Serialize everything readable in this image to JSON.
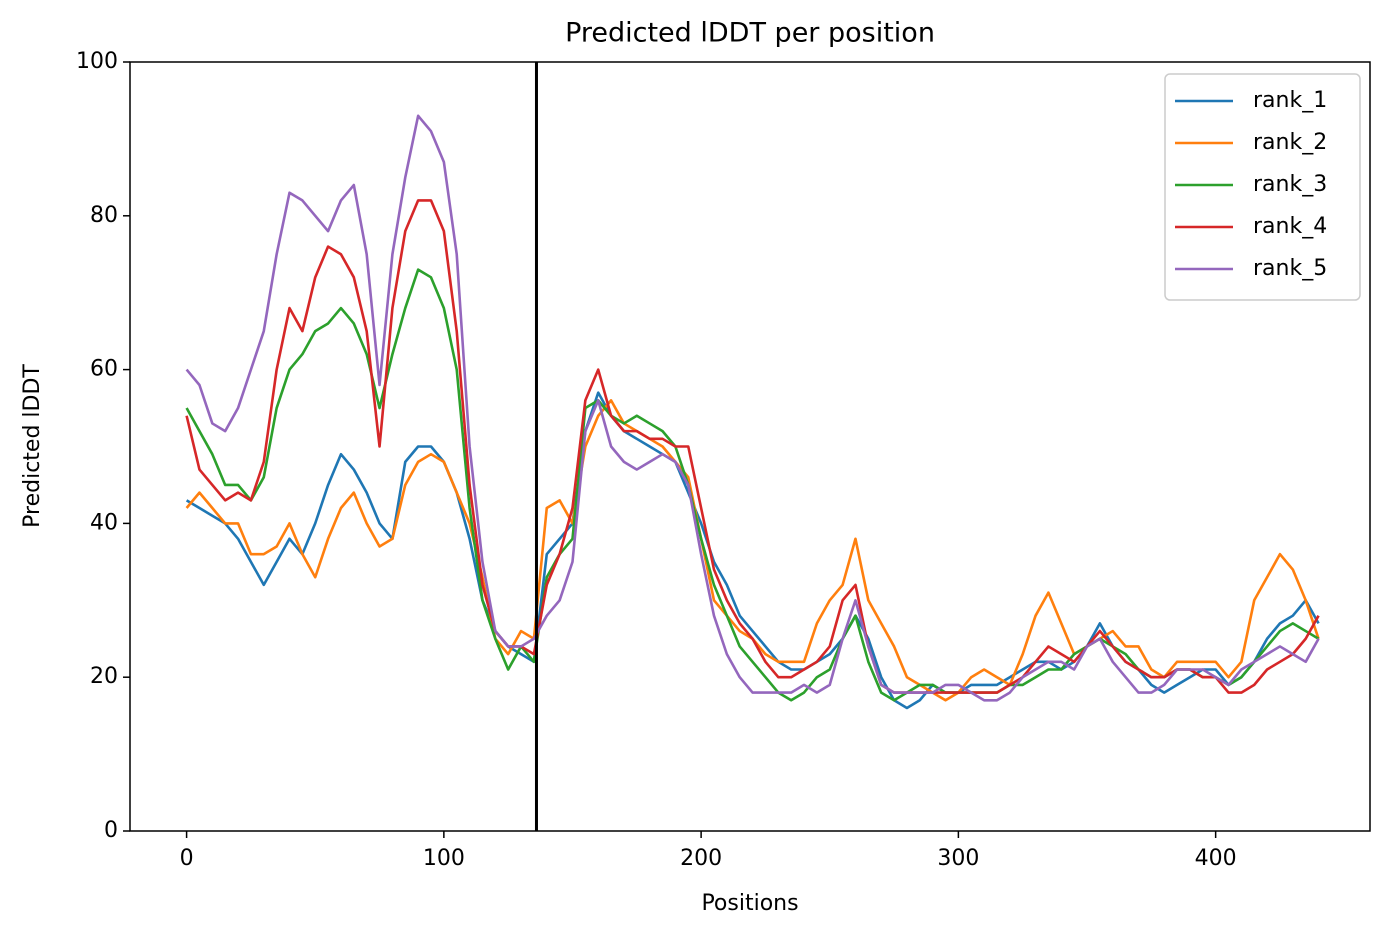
{
  "chart_data": {
    "type": "line",
    "title": "Predicted lDDT per position",
    "xlabel": "Positions",
    "ylabel": "Predicted lDDT",
    "xlim": [
      -22,
      460
    ],
    "xticks": [
      0,
      100,
      200,
      300,
      400
    ],
    "ylim": [
      0,
      100
    ],
    "yticks": [
      0,
      20,
      40,
      60,
      80,
      100
    ],
    "grid": false,
    "legend": "upper right",
    "vline": 136,
    "vline_color": "#000000",
    "x": [
      0,
      5,
      10,
      15,
      20,
      25,
      30,
      35,
      40,
      45,
      50,
      55,
      60,
      65,
      70,
      75,
      80,
      85,
      90,
      95,
      100,
      105,
      110,
      115,
      120,
      125,
      130,
      135,
      140,
      145,
      150,
      155,
      160,
      165,
      170,
      175,
      180,
      185,
      190,
      195,
      200,
      205,
      210,
      215,
      220,
      225,
      230,
      235,
      240,
      245,
      250,
      255,
      260,
      265,
      270,
      275,
      280,
      285,
      290,
      295,
      300,
      305,
      310,
      315,
      320,
      325,
      330,
      335,
      340,
      345,
      350,
      355,
      360,
      365,
      370,
      375,
      380,
      385,
      390,
      395,
      400,
      405,
      410,
      415,
      420,
      425,
      430,
      435,
      440
    ],
    "series": [
      {
        "name": "rank_1",
        "color": "#1f77b4",
        "values": [
          43,
          42,
          41,
          40,
          38,
          35,
          32,
          35,
          38,
          36,
          40,
          45,
          49,
          47,
          44,
          40,
          38,
          48,
          50,
          50,
          48,
          44,
          38,
          30,
          26,
          24,
          23,
          22,
          36,
          38,
          40,
          52,
          57,
          54,
          52,
          51,
          50,
          49,
          48,
          44,
          40,
          35,
          32,
          28,
          26,
          24,
          22,
          21,
          21,
          22,
          23,
          25,
          28,
          25,
          20,
          17,
          16,
          17,
          19,
          18,
          18,
          19,
          19,
          19,
          20,
          21,
          22,
          22,
          21,
          22,
          24,
          27,
          24,
          22,
          21,
          19,
          18,
          19,
          20,
          21,
          21,
          19,
          20,
          22,
          25,
          27,
          28,
          30,
          27
        ]
      },
      {
        "name": "rank_2",
        "color": "#ff7f0e",
        "values": [
          42,
          44,
          42,
          40,
          40,
          36,
          36,
          37,
          40,
          36,
          33,
          38,
          42,
          44,
          40,
          37,
          38,
          45,
          48,
          49,
          48,
          44,
          40,
          33,
          25,
          23,
          26,
          25,
          42,
          43,
          40,
          50,
          54,
          56,
          53,
          52,
          51,
          50,
          48,
          46,
          38,
          30,
          28,
          26,
          25,
          23,
          22,
          22,
          22,
          27,
          30,
          32,
          38,
          30,
          27,
          24,
          20,
          19,
          18,
          17,
          18,
          20,
          21,
          20,
          19,
          23,
          28,
          31,
          27,
          23,
          24,
          25,
          26,
          24,
          24,
          21,
          20,
          22,
          22,
          22,
          22,
          20,
          22,
          30,
          33,
          36,
          34,
          30,
          25
        ]
      },
      {
        "name": "rank_3",
        "color": "#2ca02c",
        "values": [
          55,
          52,
          49,
          45,
          45,
          43,
          46,
          55,
          60,
          62,
          65,
          66,
          68,
          66,
          62,
          55,
          62,
          68,
          73,
          72,
          68,
          60,
          42,
          30,
          25,
          21,
          24,
          22,
          33,
          36,
          38,
          55,
          56,
          54,
          53,
          54,
          53,
          52,
          50,
          45,
          38,
          32,
          28,
          24,
          22,
          20,
          18,
          17,
          18,
          20,
          21,
          25,
          28,
          22,
          18,
          17,
          18,
          19,
          19,
          18,
          18,
          18,
          18,
          18,
          19,
          19,
          20,
          21,
          21,
          23,
          24,
          25,
          24,
          23,
          21,
          20,
          20,
          21,
          21,
          20,
          20,
          19,
          20,
          22,
          24,
          26,
          27,
          26,
          25
        ]
      },
      {
        "name": "rank_4",
        "color": "#d62728",
        "values": [
          54,
          47,
          45,
          43,
          44,
          43,
          48,
          60,
          68,
          65,
          72,
          76,
          75,
          72,
          65,
          50,
          68,
          78,
          82,
          82,
          78,
          65,
          45,
          32,
          26,
          24,
          24,
          23,
          32,
          36,
          42,
          56,
          60,
          54,
          52,
          52,
          51,
          51,
          50,
          50,
          42,
          34,
          30,
          27,
          25,
          22,
          20,
          20,
          21,
          22,
          24,
          30,
          32,
          24,
          19,
          18,
          18,
          18,
          18,
          18,
          18,
          18,
          18,
          18,
          19,
          20,
          22,
          24,
          23,
          22,
          24,
          26,
          24,
          22,
          21,
          20,
          20,
          21,
          21,
          20,
          20,
          18,
          18,
          19,
          21,
          22,
          23,
          25,
          28
        ]
      },
      {
        "name": "rank_5",
        "color": "#9467bd",
        "values": [
          60,
          58,
          53,
          52,
          55,
          60,
          65,
          75,
          83,
          82,
          80,
          78,
          82,
          84,
          75,
          58,
          75,
          85,
          93,
          91,
          87,
          75,
          50,
          35,
          26,
          24,
          24,
          25,
          28,
          30,
          35,
          52,
          56,
          50,
          48,
          47,
          48,
          49,
          48,
          45,
          36,
          28,
          23,
          20,
          18,
          18,
          18,
          18,
          19,
          18,
          19,
          25,
          30,
          24,
          19,
          18,
          18,
          18,
          18,
          19,
          19,
          18,
          17,
          17,
          18,
          20,
          21,
          22,
          22,
          21,
          24,
          25,
          22,
          20,
          18,
          18,
          19,
          21,
          21,
          21,
          20,
          19,
          21,
          22,
          23,
          24,
          23,
          22,
          25
        ]
      }
    ]
  }
}
